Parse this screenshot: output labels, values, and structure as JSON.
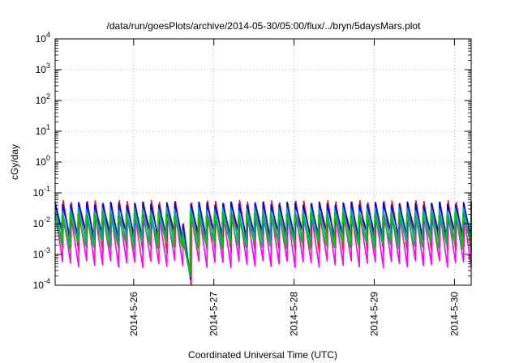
{
  "chart_data": {
    "type": "line",
    "title": "/data/run/goesPlots/archive/2014-05-30/05:00/flux/../bryn/5daysMars.plot",
    "xlabel": "Coordinated Universal Time (UTC)",
    "ylabel": "cGy/day",
    "yscale": "log",
    "ylim": [
      0.0001,
      10000
    ],
    "yticks": [
      {
        "base": "10",
        "exp": "-4"
      },
      {
        "base": "10",
        "exp": "-3"
      },
      {
        "base": "10",
        "exp": "-2"
      },
      {
        "base": "10",
        "exp": "-1"
      },
      {
        "base": "10",
        "exp": "0"
      },
      {
        "base": "10",
        "exp": "1"
      },
      {
        "base": "10",
        "exp": "2"
      },
      {
        "base": "10",
        "exp": "3"
      },
      {
        "base": "10",
        "exp": "4"
      }
    ],
    "xlim": [
      "2014-05-25T00:30",
      "2014-05-30T05:00"
    ],
    "xticks": [
      "2014-5-26",
      "2014-5-27",
      "2014-5-28",
      "2014-5-29",
      "2014-5-30"
    ],
    "grid": true,
    "pattern": {
      "cycles_per_day": 10,
      "dip_start": "2014-05-26T14:00",
      "dip_end": "2014-05-26T16:00"
    },
    "series": [
      {
        "color": "#ff0000",
        "peak": 0.05,
        "trough": 0.0015
      },
      {
        "color": "#ff00ff",
        "peak": 0.022,
        "trough": 0.0005
      },
      {
        "color": "#0000ff",
        "peak": 0.045,
        "trough": 0.004
      },
      {
        "color": "#00aaaa",
        "peak": 0.03,
        "trough": 0.0025
      },
      {
        "color": "#00cc00",
        "peak": 0.02,
        "trough": 0.002
      }
    ]
  }
}
